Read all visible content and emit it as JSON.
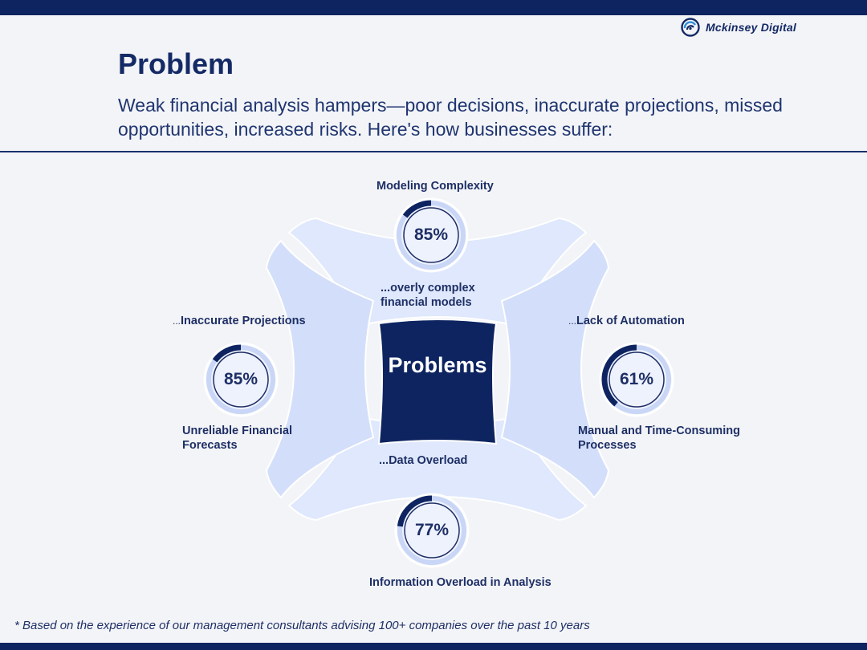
{
  "brand": {
    "name": "Mckinsey",
    "suffix": "Digital"
  },
  "title": "Problem",
  "subtitle": "Weak financial analysis hampers—poor decisions, inaccurate projections, missed opportunities, increased risks. Here's how businesses suffer:",
  "center": {
    "label": "Problems"
  },
  "items": {
    "top": {
      "heading": "Modeling Complexity",
      "percent": "85%",
      "value": 85,
      "note": "...overly complex financial models"
    },
    "left": {
      "heading": "Inaccurate Projections",
      "percent": "85%",
      "value": 85,
      "note": "Unreliable Financial Forecasts"
    },
    "right": {
      "heading": "Lack of Automation",
      "percent": "61%",
      "value": 61,
      "note": "Manual and Time-Consuming Processes"
    },
    "bottom": {
      "heading": "Information Overload in Analysis",
      "percent": "77%",
      "value": 77,
      "note": "...Data Overload"
    }
  },
  "footnote": "* Based on the experience of our management consultants advising 100+ companies over the past 10 years",
  "colors": {
    "navy": "#0d2461",
    "light_blue": "#dce6fb",
    "ring_bg": "#e8eefc",
    "text": "#1e2f66"
  }
}
